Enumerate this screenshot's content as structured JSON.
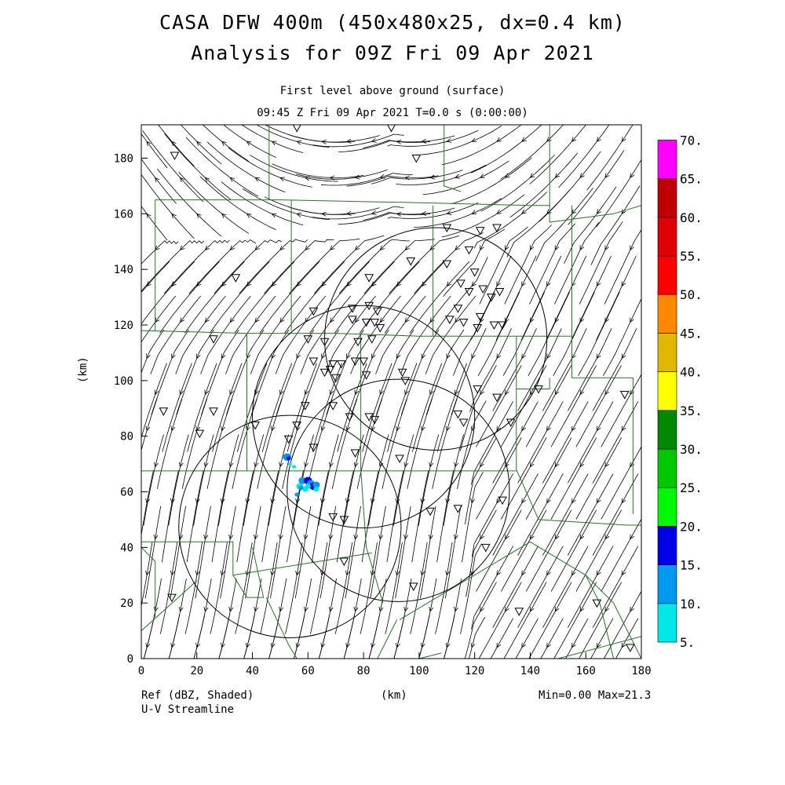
{
  "title": {
    "line1": "CASA DFW 400m (450x480x25, dx=0.4 km)",
    "line2": "Analysis for 09Z Fri 09 Apr 2021",
    "level": "First level above ground (surface)",
    "time": "09:45 Z Fri 09 Apr 2021    T=0.0 s (0:00:00)"
  },
  "footer": {
    "field1": "Ref (dBZ, Shaded)",
    "field2": "U-V Streamline",
    "stats": "Min=0.00 Max=21.3"
  },
  "chart_data": {
    "type": "map",
    "xlabel": "(km)",
    "ylabel": "(km)",
    "xlim": [
      0,
      180
    ],
    "ylim": [
      0,
      192
    ],
    "xticks": [
      0,
      20,
      40,
      60,
      80,
      100,
      120,
      140,
      160,
      180
    ],
    "yticks": [
      0,
      20,
      40,
      60,
      80,
      100,
      120,
      140,
      160,
      180
    ],
    "colorbar": {
      "levels": [
        "5.",
        "10.",
        "15.",
        "20.",
        "25.",
        "30.",
        "35.",
        "40.",
        "45.",
        "50.",
        "55.",
        "60.",
        "65.",
        "70."
      ],
      "colors": [
        "#00e8e8",
        "#0098f0",
        "#0000e8",
        "#00f800",
        "#00c800",
        "#008800",
        "#ffff00",
        "#e0b800",
        "#ff8800",
        "#ff0000",
        "#e00000",
        "#c00000",
        "#ff00ff"
      ]
    },
    "radar_rings": [
      {
        "cx": 53.5,
        "cy": 47.5,
        "r": 40
      },
      {
        "cx": 80,
        "cy": 87,
        "r": 40
      },
      {
        "cx": 92.5,
        "cy": 60.5,
        "r": 40
      },
      {
        "cx": 106,
        "cy": 115,
        "r": 40
      }
    ],
    "reflectivity_max": 21.3,
    "reflectivity_min": 0.0
  }
}
